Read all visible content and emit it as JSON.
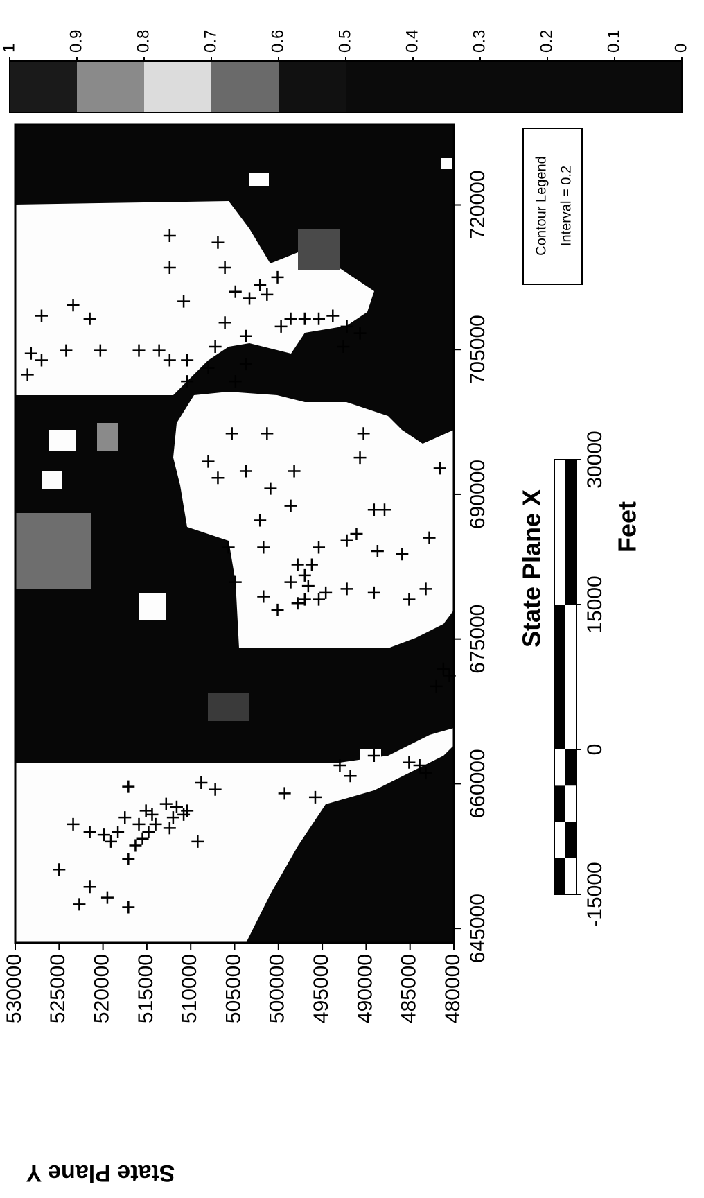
{
  "chart_data": {
    "type": "scatter",
    "xlabel": "State Plane X",
    "ylabel": "State Plane Y",
    "xlim": [
      643500,
      728300
    ],
    "ylim": [
      480000,
      530000
    ],
    "xticks": [
      645000,
      660000,
      675000,
      690000,
      705000,
      720000
    ],
    "yticks": [
      480000,
      485000,
      490000,
      495000,
      500000,
      505000,
      510000,
      515000,
      520000,
      525000,
      530000
    ],
    "series": [
      {
        "color": "#000000",
        "x": [
          651100,
          647500,
          649300,
          648200,
          647200,
          655800,
          655000,
          654700,
          654000,
          655000,
          656500,
          655800,
          657200,
          656800,
          657900,
          656500,
          656800,
          652200,
          653600,
          654300,
          655000,
          655800,
          655400,
          657600,
          657200,
          654000,
          660100,
          659400,
          659700,
          659000,
          658600,
          661900,
          660800,
          662900,
          662200,
          661900,
          661100,
          671200,
          671900,
          670100,
          680900,
          693400,
          691700,
          692400,
          692400,
          693800,
          688400,
          688400,
          685900,
          684100,
          683800,
          685500,
          680200,
          679100,
          679800,
          680200,
          679800,
          678700,
          678000,
          679400,
          684500,
          685200,
          688800,
          690600,
          696300,
          696300,
          696300,
          692700,
          682700,
          681600,
          682700,
          680900,
          680500,
          679100,
          679100,
          684500,
          687300,
          684500,
          702400,
          704600,
          703900,
          704900,
          704900,
          704900,
          704900,
          703900,
          708500,
          709600,
          708200,
          710000,
          716800,
          713500,
          703100,
          705300,
          707800,
          711000,
          710300,
          706400,
          703500,
          711700,
          710700,
          712500,
          707400,
          708200,
          708200,
          708200,
          708500,
          707400,
          705300,
          706700,
          716100,
          713500,
          703900,
          701700,
          701700
        ],
        "values": [
          525000,
          522700,
          521500,
          519500,
          517100,
          523400,
          521500,
          519900,
          519100,
          518300,
          517500,
          515900,
          515100,
          514400,
          512800,
          512000,
          510800,
          517100,
          516300,
          515500,
          514800,
          514000,
          512400,
          511600,
          510400,
          509200,
          508800,
          507200,
          517100,
          499300,
          495800,
          493000,
          491800,
          489100,
          485100,
          483900,
          483200,
          480500,
          481200,
          482000,
          504900,
          508000,
          506900,
          503700,
          498200,
          490700,
          489100,
          487900,
          491100,
          488700,
          485900,
          482800,
          483200,
          485100,
          489100,
          492200,
          494600,
          497800,
          500100,
          501700,
          495400,
          492200,
          498600,
          500900,
          505300,
          501300,
          490300,
          481600,
          496200,
          497000,
          497800,
          498600,
          496600,
          497000,
          495400,
          501700,
          502100,
          505700,
          528600,
          528200,
          527000,
          524200,
          520300,
          515900,
          513600,
          512400,
          527000,
          523400,
          521500,
          510800,
          512400,
          512400,
          508000,
          507200,
          506100,
          504900,
          503300,
          503700,
          503700,
          502100,
          501300,
          500100,
          499700,
          498600,
          497000,
          495400,
          493800,
          492200,
          492600,
          490700,
          506900,
          506100,
          510400,
          510400,
          504900
        ]
      }
    ],
    "colorbar": {
      "lim": [
        0,
        1
      ],
      "ticks": [
        0,
        0.1,
        0.2,
        0.3,
        0.4,
        0.5,
        0.6,
        0.7,
        0.8,
        0.9,
        1
      ],
      "colors": [
        "#0b0b0b",
        "#0b0b0b",
        "#0b0b0b",
        "#0b0b0b",
        "#0b0b0b",
        "#111111",
        "#6a6a6a",
        "#dcdcdc",
        "#8a8a8a",
        "#1a1a1a"
      ]
    },
    "contour_legend": {
      "title": "Contour Legend",
      "text": "Interval = 0.2"
    },
    "scale_bar": {
      "label": "Feet",
      "lim": [
        -15000,
        30000
      ],
      "ticks": [
        -15000,
        0,
        15000,
        30000
      ]
    }
  }
}
